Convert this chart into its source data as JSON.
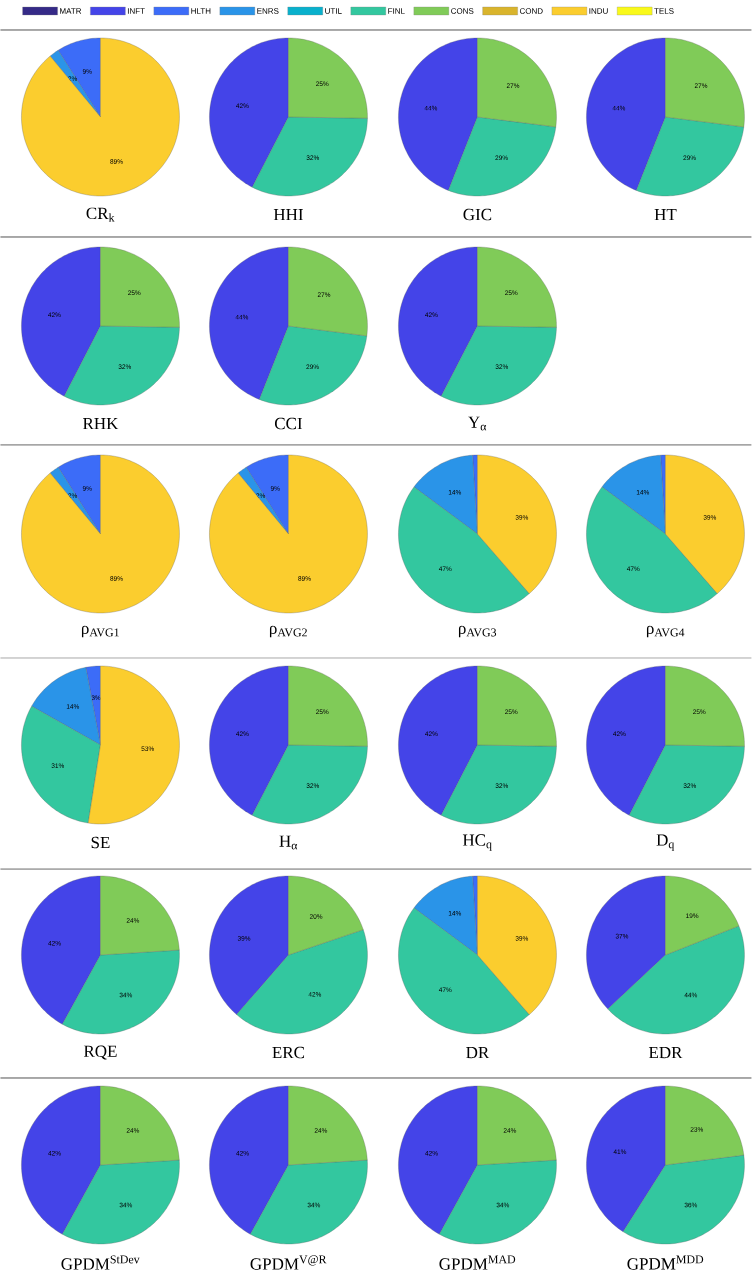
{
  "chart_data": [
    {
      "type": "pie",
      "title": "CR$_{k}$",
      "legend": "top",
      "categories": [
        "MATR",
        "INFT",
        "HLTH",
        "ENRS",
        "UTIL",
        "FINL",
        "CONS",
        "COND",
        "INDU",
        "TELS"
      ],
      "values": [
        0,
        0,
        9,
        2,
        0,
        0,
        0,
        0,
        89,
        0
      ],
      "value_labels": [
        null,
        null,
        "9%",
        "2%",
        null,
        null,
        null,
        null,
        "89%",
        null
      ],
      "colors": [
        "#352a87",
        "#4444e8",
        "#3c6cf8",
        "#2a94e8",
        "#09b0cc",
        "#33c79f",
        "#80cb58",
        "#d9b42c",
        "#fbcd2e",
        "#f9f91a"
      ]
    },
    {
      "type": "pie",
      "title": "HHI",
      "categories": [
        null,
        null,
        null,
        null,
        null,
        null,
        null,
        null,
        null,
        null
      ],
      "values": [
        0,
        42,
        0,
        0,
        0,
        32,
        25,
        0,
        0,
        0
      ],
      "value_labels": [
        null,
        "42%",
        null,
        null,
        null,
        "32%",
        "25%",
        null,
        null,
        null
      ],
      "colors": [
        "#352a87",
        "#4444e8",
        "#3c6cf8",
        "#2a94e8",
        "#09b0cc",
        "#33c79f",
        "#80cb58",
        "#d9b42c",
        "#fbcd2e",
        "#f9f91a"
      ]
    },
    {
      "type": "pie",
      "title": "GIC",
      "categories": [
        null,
        null,
        null,
        null,
        null,
        null,
        null,
        null,
        null,
        null
      ],
      "values": [
        0,
        44,
        0,
        0,
        0,
        29,
        27,
        0,
        0,
        0
      ],
      "value_labels": [
        null,
        "44%",
        null,
        null,
        null,
        "29%",
        "27%",
        null,
        null,
        null
      ],
      "colors": [
        "#352a87",
        "#4444e8",
        "#3c6cf8",
        "#2a94e8",
        "#09b0cc",
        "#33c79f",
        "#80cb58",
        "#d9b42c",
        "#fbcd2e",
        "#f9f91a"
      ]
    },
    {
      "type": "pie",
      "title": "HT",
      "categories": [
        null,
        null,
        null,
        null,
        null,
        null,
        null,
        null,
        null,
        null
      ],
      "values": [
        0,
        44,
        0,
        0,
        0,
        29,
        27,
        0,
        0,
        0
      ],
      "value_labels": [
        null,
        "44%",
        null,
        null,
        null,
        "29%",
        "27%",
        null,
        null,
        null
      ],
      "colors": [
        "#352a87",
        "#4444e8",
        "#3c6cf8",
        "#2a94e8",
        "#09b0cc",
        "#33c79f",
        "#80cb58",
        "#d9b42c",
        "#fbcd2e",
        "#f9f91a"
      ]
    },
    {
      "type": "pie",
      "title": "RHK",
      "categories": [
        null,
        null,
        null,
        null,
        null,
        null,
        null,
        null,
        null,
        null
      ],
      "values": [
        0,
        42,
        0,
        0,
        0,
        32,
        25,
        0,
        0,
        0
      ],
      "value_labels": [
        null,
        "42%",
        null,
        null,
        null,
        "32%",
        "25%",
        null,
        null,
        null
      ],
      "colors": [
        "#352a87",
        "#4444e8",
        "#3c6cf8",
        "#2a94e8",
        "#09b0cc",
        "#33c79f",
        "#80cb58",
        "#d9b42c",
        "#fbcd2e",
        "#f9f91a"
      ]
    },
    {
      "type": "pie",
      "title": "CCI",
      "categories": [
        null,
        null,
        null,
        null,
        null,
        null,
        null,
        null,
        null,
        null
      ],
      "values": [
        0,
        44,
        0,
        0,
        0,
        29,
        27,
        0,
        0,
        0
      ],
      "value_labels": [
        null,
        "44%",
        null,
        null,
        null,
        "29%",
        "27%",
        null,
        null,
        null
      ],
      "colors": [
        "#352a87",
        "#4444e8",
        "#3c6cf8",
        "#2a94e8",
        "#09b0cc",
        "#33c79f",
        "#80cb58",
        "#d9b42c",
        "#fbcd2e",
        "#f9f91a"
      ]
    },
    {
      "type": "pie",
      "title": "Y$_{α}$",
      "categories": [
        null,
        null,
        null,
        null,
        null,
        null,
        null,
        null,
        null,
        null
      ],
      "values": [
        0,
        42,
        0,
        0,
        0,
        32,
        25,
        0,
        0,
        0
      ],
      "value_labels": [
        null,
        "42%",
        null,
        null,
        null,
        "32%",
        "25%",
        null,
        null,
        null
      ],
      "colors": [
        "#352a87",
        "#4444e8",
        "#3c6cf8",
        "#2a94e8",
        "#09b0cc",
        "#33c79f",
        "#80cb58",
        "#d9b42c",
        "#fbcd2e",
        "#f9f91a"
      ]
    },
    {
      "type": "pie",
      "title": "ρ$_{AVG1}$",
      "categories": [
        null,
        null,
        null,
        null,
        null,
        null,
        null,
        null,
        null,
        null
      ],
      "values": [
        0,
        0,
        9,
        2,
        0,
        0,
        0,
        0,
        89,
        0
      ],
      "value_labels": [
        null,
        null,
        "9%",
        "2%",
        null,
        null,
        null,
        null,
        "89%",
        null
      ],
      "colors": [
        "#352a87",
        "#4444e8",
        "#3c6cf8",
        "#2a94e8",
        "#09b0cc",
        "#33c79f",
        "#80cb58",
        "#d9b42c",
        "#fbcd2e",
        "#f9f91a"
      ]
    },
    {
      "type": "pie",
      "title": "ρ$_{AVG2}$",
      "categories": [
        null,
        null,
        null,
        null,
        null,
        null,
        null,
        null,
        null,
        null
      ],
      "values": [
        0,
        0,
        9,
        2,
        0,
        0,
        0,
        0,
        89,
        0
      ],
      "value_labels": [
        null,
        null,
        "9%",
        "2%",
        null,
        null,
        null,
        null,
        "89%",
        null
      ],
      "colors": [
        "#352a87",
        "#4444e8",
        "#3c6cf8",
        "#2a94e8",
        "#09b0cc",
        "#33c79f",
        "#80cb58",
        "#d9b42c",
        "#fbcd2e",
        "#f9f91a"
      ]
    },
    {
      "type": "pie",
      "title": "ρ$_{AVG3}$",
      "categories": [
        null,
        null,
        null,
        null,
        null,
        null,
        null,
        null,
        null,
        null
      ],
      "values": [
        0,
        0,
        1,
        14,
        0,
        47,
        0,
        0,
        39,
        0
      ],
      "value_labels": [
        null,
        null,
        null,
        "14%",
        null,
        "47%",
        null,
        null,
        "39%",
        null
      ],
      "colors": [
        "#352a87",
        "#4444e8",
        "#3c6cf8",
        "#2a94e8",
        "#09b0cc",
        "#33c79f",
        "#80cb58",
        "#d9b42c",
        "#fbcd2e",
        "#f9f91a"
      ]
    },
    {
      "type": "pie",
      "title": "ρ$_{AVG4}$",
      "categories": [
        null,
        null,
        null,
        null,
        null,
        null,
        null,
        null,
        null,
        null
      ],
      "values": [
        0,
        0,
        1,
        14,
        0,
        47,
        0,
        0,
        39,
        0
      ],
      "value_labels": [
        null,
        null,
        null,
        "14%",
        null,
        "47%",
        null,
        null,
        "39%",
        null
      ],
      "colors": [
        "#352a87",
        "#4444e8",
        "#3c6cf8",
        "#2a94e8",
        "#09b0cc",
        "#33c79f",
        "#80cb58",
        "#d9b42c",
        "#fbcd2e",
        "#f9f91a"
      ]
    },
    {
      "type": "pie",
      "title": "SE",
      "categories": [
        null,
        null,
        null,
        null,
        null,
        null,
        null,
        null,
        null,
        null
      ],
      "values": [
        0,
        0,
        3,
        14,
        0,
        31,
        0,
        0,
        53,
        0
      ],
      "value_labels": [
        null,
        null,
        "3%",
        "14%",
        null,
        "31%",
        null,
        null,
        "53%",
        null
      ],
      "colors": [
        "#352a87",
        "#4444e8",
        "#3c6cf8",
        "#2a94e8",
        "#09b0cc",
        "#33c79f",
        "#80cb58",
        "#d9b42c",
        "#fbcd2e",
        "#f9f91a"
      ]
    },
    {
      "type": "pie",
      "title": "H$_{α}$",
      "categories": [
        null,
        null,
        null,
        null,
        null,
        null,
        null,
        null,
        null,
        null
      ],
      "values": [
        0,
        42,
        0,
        0,
        0,
        32,
        25,
        0,
        0,
        0
      ],
      "value_labels": [
        null,
        "42%",
        null,
        null,
        null,
        "32%",
        "25%",
        null,
        null,
        null
      ],
      "colors": [
        "#352a87",
        "#4444e8",
        "#3c6cf8",
        "#2a94e8",
        "#09b0cc",
        "#33c79f",
        "#80cb58",
        "#d9b42c",
        "#fbcd2e",
        "#f9f91a"
      ]
    },
    {
      "type": "pie",
      "title": "HC$_{q}$",
      "categories": [
        null,
        null,
        null,
        null,
        null,
        null,
        null,
        null,
        null,
        null
      ],
      "values": [
        0,
        42,
        0,
        0,
        0,
        32,
        25,
        0,
        0,
        0
      ],
      "value_labels": [
        null,
        "42%",
        null,
        null,
        null,
        "32%",
        "25%",
        null,
        null,
        null
      ],
      "colors": [
        "#352a87",
        "#4444e8",
        "#3c6cf8",
        "#2a94e8",
        "#09b0cc",
        "#33c79f",
        "#80cb58",
        "#d9b42c",
        "#fbcd2e",
        "#f9f91a"
      ]
    },
    {
      "type": "pie",
      "title": "D$_{q}$",
      "categories": [
        null,
        null,
        null,
        null,
        null,
        null,
        null,
        null,
        null,
        null
      ],
      "values": [
        0,
        42,
        0,
        0,
        0,
        32,
        25,
        0,
        0,
        0
      ],
      "value_labels": [
        null,
        "42%",
        null,
        null,
        null,
        "32%",
        "25%",
        null,
        null,
        null
      ],
      "colors": [
        "#352a87",
        "#4444e8",
        "#3c6cf8",
        "#2a94e8",
        "#09b0cc",
        "#33c79f",
        "#80cb58",
        "#d9b42c",
        "#fbcd2e",
        "#f9f91a"
      ]
    },
    {
      "type": "pie",
      "title": "RQE",
      "categories": [
        null,
        null,
        null,
        null,
        null,
        null,
        null,
        null,
        null,
        null
      ],
      "values": [
        0,
        42,
        0,
        0,
        0,
        34,
        24,
        0,
        0,
        0
      ],
      "value_labels": [
        null,
        "42%",
        null,
        null,
        null,
        "34%",
        "24%",
        null,
        null,
        null
      ],
      "colors": [
        "#352a87",
        "#4444e8",
        "#3c6cf8",
        "#2a94e8",
        "#09b0cc",
        "#33c79f",
        "#80cb58",
        "#d9b42c",
        "#fbcd2e",
        "#f9f91a"
      ]
    },
    {
      "type": "pie",
      "title": "ERC",
      "categories": [
        null,
        null,
        null,
        null,
        null,
        null,
        null,
        null,
        null,
        null
      ],
      "values": [
        0,
        39,
        0,
        0,
        0,
        42,
        20,
        0,
        0,
        0
      ],
      "value_labels": [
        null,
        "39%",
        null,
        null,
        null,
        "42%",
        "20%",
        null,
        null,
        null
      ],
      "colors": [
        "#352a87",
        "#4444e8",
        "#3c6cf8",
        "#2a94e8",
        "#09b0cc",
        "#33c79f",
        "#80cb58",
        "#d9b42c",
        "#fbcd2e",
        "#f9f91a"
      ]
    },
    {
      "type": "pie",
      "title": "DR",
      "categories": [
        null,
        null,
        null,
        null,
        null,
        null,
        null,
        null,
        null,
        null
      ],
      "values": [
        0,
        0,
        1,
        14,
        0,
        47,
        0,
        0,
        39,
        0
      ],
      "value_labels": [
        null,
        null,
        null,
        "14%",
        null,
        "47%",
        null,
        null,
        "39%",
        null
      ],
      "colors": [
        "#352a87",
        "#4444e8",
        "#3c6cf8",
        "#2a94e8",
        "#09b0cc",
        "#33c79f",
        "#80cb58",
        "#d9b42c",
        "#fbcd2e",
        "#f9f91a"
      ]
    },
    {
      "type": "pie",
      "title": "EDR",
      "categories": [
        null,
        null,
        null,
        null,
        null,
        null,
        null,
        null,
        null,
        null
      ],
      "values": [
        0,
        37,
        0,
        0,
        0,
        44,
        19,
        0,
        0,
        0
      ],
      "value_labels": [
        null,
        "37%",
        null,
        null,
        null,
        "44%",
        "19%",
        null,
        null,
        null
      ],
      "colors": [
        "#352a87",
        "#4444e8",
        "#3c6cf8",
        "#2a94e8",
        "#09b0cc",
        "#33c79f",
        "#80cb58",
        "#d9b42c",
        "#fbcd2e",
        "#f9f91a"
      ]
    },
    {
      "type": "pie",
      "title": "GPDM$^{StDev}$",
      "categories": [
        null,
        null,
        null,
        null,
        null,
        null,
        null,
        null,
        null,
        null
      ],
      "values": [
        0,
        42,
        0,
        0,
        0,
        34,
        24,
        0,
        0,
        0
      ],
      "value_labels": [
        null,
        "42%",
        null,
        null,
        null,
        "34%",
        "24%",
        null,
        null,
        null
      ],
      "colors": [
        "#352a87",
        "#4444e8",
        "#3c6cf8",
        "#2a94e8",
        "#09b0cc",
        "#33c79f",
        "#80cb58",
        "#d9b42c",
        "#fbcd2e",
        "#f9f91a"
      ]
    },
    {
      "type": "pie",
      "title": "GPDM$^{V@R}$",
      "categories": [
        null,
        null,
        null,
        null,
        null,
        null,
        null,
        null,
        null,
        null
      ],
      "values": [
        0,
        42,
        0,
        0,
        0,
        34,
        24,
        0,
        0,
        0
      ],
      "value_labels": [
        null,
        "42%",
        null,
        null,
        null,
        "34%",
        "24%",
        null,
        null,
        null
      ],
      "colors": [
        "#352a87",
        "#4444e8",
        "#3c6cf8",
        "#2a94e8",
        "#09b0cc",
        "#33c79f",
        "#80cb58",
        "#d9b42c",
        "#fbcd2e",
        "#f9f91a"
      ]
    },
    {
      "type": "pie",
      "title": "GPDM$^{MAD}$",
      "categories": [
        null,
        null,
        null,
        null,
        null,
        null,
        null,
        null,
        null,
        null
      ],
      "values": [
        0,
        42,
        0,
        0,
        0,
        34,
        24,
        0,
        0,
        0
      ],
      "value_labels": [
        null,
        "42%",
        null,
        null,
        null,
        "34%",
        "24%",
        null,
        null,
        null
      ],
      "colors": [
        "#352a87",
        "#4444e8",
        "#3c6cf8",
        "#2a94e8",
        "#09b0cc",
        "#33c79f",
        "#80cb58",
        "#d9b42c",
        "#fbcd2e",
        "#f9f91a"
      ]
    },
    {
      "type": "pie",
      "title": "GPDM$^{MDD}$",
      "categories": [
        null,
        null,
        null,
        null,
        null,
        null,
        null,
        null,
        null,
        null
      ],
      "values": [
        0,
        41,
        0,
        0,
        0,
        36,
        23,
        0,
        0,
        0
      ],
      "value_labels": [
        null,
        "41%",
        null,
        null,
        null,
        "36%",
        "23%",
        null,
        null,
        null
      ],
      "colors": [
        "#352a87",
        "#4444e8",
        "#3c6cf8",
        "#2a94e8",
        "#09b0cc",
        "#33c79f",
        "#80cb58",
        "#d9b42c",
        "#fbcd2e",
        "#f9f91a"
      ]
    }
  ]
}
